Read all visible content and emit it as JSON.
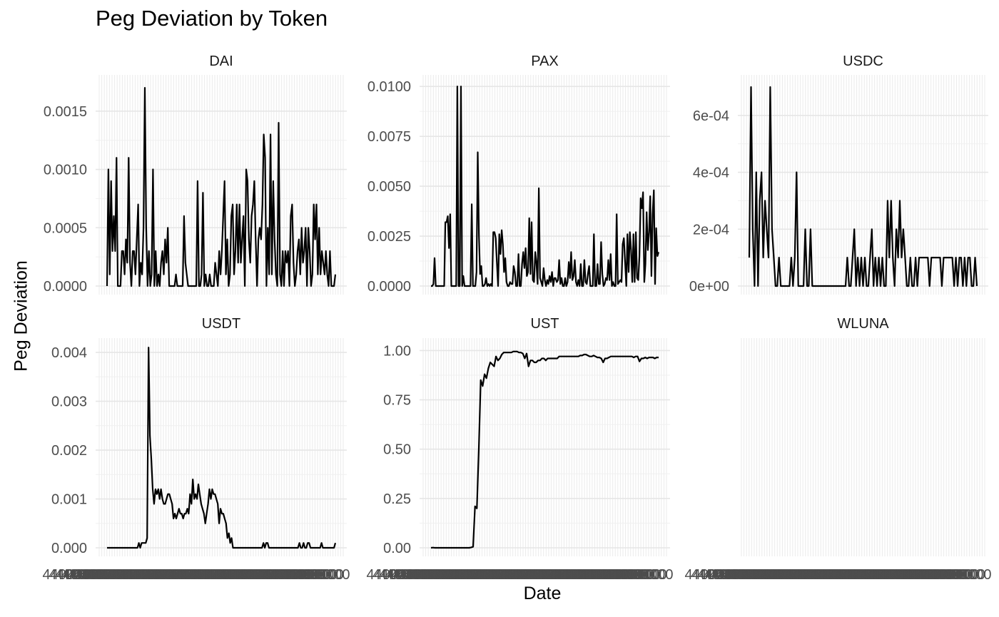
{
  "chart_data": {
    "type": "line",
    "title": "Peg Deviation by Token",
    "xlabel": "Date",
    "ylabel": "Peg Deviation",
    "x_tick_label": "44000000",
    "grid": true,
    "facets": [
      {
        "name": "DAI",
        "ylim": [
          0,
          0.00178
        ],
        "yticks": [
          0,
          0.0005,
          0.001,
          0.0015
        ],
        "ytick_labels": [
          "0.0000",
          "0.0005",
          "0.0010",
          "0.0015"
        ],
        "values": [
          0,
          0.001,
          0.0001,
          0.0009,
          0.0003,
          0.0006,
          0.0003,
          0.0011,
          0,
          0,
          0,
          0.0003,
          0.0003,
          0.0001,
          0.0004,
          0.0002,
          0.0011,
          0.0002,
          0,
          0.0003,
          0.0003,
          0.0001,
          0.0004,
          0.0007,
          0,
          0.0002,
          0.0001,
          0.0005,
          0.0017,
          0.0005,
          0,
          0.0003,
          0,
          0.0001,
          0.001,
          0,
          0.0003,
          0,
          0.0001,
          0,
          0.0002,
          0.0003,
          0.0001,
          0.0004,
          0.0002,
          0.0005,
          0,
          0,
          0,
          0,
          0,
          0.0001,
          0,
          0,
          0,
          0,
          0,
          0.0006,
          0.0002,
          0.0001,
          0,
          0,
          0,
          0,
          0,
          0,
          0,
          0.0009,
          0,
          0,
          0.0001,
          0.0008,
          0,
          0.0001,
          0,
          0,
          0.0001,
          0,
          0,
          0,
          0.0002,
          0.0001,
          0,
          0.0003,
          0.0001,
          0.0003,
          0.0006,
          0.0009,
          0.0001,
          0.0004,
          0,
          0.0001,
          0.0006,
          0.0007,
          0.0001,
          0.0003,
          0.0007,
          0.0002,
          0.0007,
          0.0002,
          0.0004,
          0.0006,
          0,
          0.001,
          0.0009,
          0.0004,
          0.0002,
          0.0006,
          0.0007,
          0.0009,
          0.0004,
          0,
          0.0004,
          0.0005,
          0.0004,
          0.0007,
          0.0013,
          0.0011,
          0,
          0.0005,
          0.0001,
          0.0013,
          0.0001,
          0.0009,
          0.0004,
          0.0001,
          0,
          0.0014,
          0.0001,
          0,
          0.0003,
          0,
          0.0003,
          0.0002,
          0.0003,
          0,
          0.0006,
          0.0007,
          0.0002,
          0,
          0.0001,
          0.0003,
          0.0004,
          0.0001,
          0.0005,
          0.0002,
          0.0003,
          0.0005,
          0,
          0.0005,
          0.0003,
          0,
          0.0001,
          0.0007,
          0.0004,
          0.0007,
          0.0001,
          0.0005,
          0.0001,
          0.0003,
          0.0002,
          0.0001,
          0.0003,
          0.0001,
          0,
          0.0003,
          0,
          0,
          0,
          0.0001
        ]
      },
      {
        "name": "PAX",
        "ylim": [
          0,
          0.0104
        ],
        "yticks": [
          0,
          0.0025,
          0.005,
          0.0075,
          0.01
        ],
        "ytick_labels": [
          "0.0000",
          "0.0025",
          "0.0050",
          "0.0075",
          "0.0100"
        ],
        "values": [
          0,
          0,
          0.0001,
          0.0014,
          0,
          0,
          0,
          0,
          0,
          0,
          0,
          0,
          0.0032,
          0.0032,
          0.0035,
          0.0019,
          0.0036,
          0,
          0,
          0,
          0,
          0,
          0.01,
          0,
          0,
          0.01,
          0,
          0.0005,
          0,
          0,
          0,
          0,
          0,
          0,
          0.0041,
          0,
          0,
          0,
          0.0007,
          0.0067,
          0.0025,
          0.0006,
          0.001,
          0,
          0,
          0.0001,
          0.0004,
          0,
          0.0001,
          0,
          0.0001,
          0,
          0.0027,
          0.0027,
          0.0024,
          0.0012,
          0,
          0.0026,
          0.0016,
          0.0028,
          0.0021,
          0.0007,
          0.0014,
          0.0002,
          0,
          0,
          0.0002,
          0.0001,
          0.0001,
          0.001,
          0.0007,
          0,
          0,
          0.0016,
          0,
          0,
          0.0011,
          0.0017,
          0.0009,
          0.0019,
          0.0005,
          0.0007,
          0.0034,
          0.0006,
          0.0032,
          0.0003,
          0.0002,
          0.0017,
          0.0012,
          0.0001,
          0.0049,
          0.0004,
          0.0002,
          0,
          0.0009,
          0.0003,
          0,
          0.0003,
          0.0001,
          0.0005,
          0.0002,
          0.0007,
          0,
          0.0004,
          0.0004,
          0.0002,
          0.0003,
          0.0013,
          0.0001,
          0.0004,
          0,
          0,
          0.0004,
          0,
          0.0002,
          0.0012,
          0.0004,
          0.0017,
          0.0003,
          0.0005,
          0.0013,
          0.0002,
          0,
          0.0003,
          0,
          0.0011,
          0,
          0,
          0.0013,
          0.0002,
          0.0001,
          0.0006,
          0.001,
          0,
          0,
          0,
          0.0026,
          0,
          0,
          0.0011,
          0.0001,
          0.0001,
          0.0022,
          0.0006,
          0,
          0.0001,
          0.0004,
          0.0003,
          0.0013,
          0.0003,
          0.0016,
          0,
          0.0002,
          0,
          0,
          0.0036,
          0.0001,
          0.0002,
          0.0003,
          0.0002,
          0.0021,
          0.0024,
          0.0012,
          0,
          0.0026,
          0.0007,
          0.0027,
          0.0018,
          0.0002,
          0.0026,
          0.0002,
          0.0027,
          0.0004,
          0.0003,
          0.0015,
          0.0044,
          0.0039,
          0.0047,
          0.0002,
          0.0011,
          0.0037,
          0.0018,
          0.0027,
          0.0045,
          0.0005,
          0.0036,
          0.0048,
          0.0001,
          0.0029,
          0.0015,
          0.0017
        ]
      },
      {
        "name": "USDC",
        "ylim": [
          0,
          0.00073
        ],
        "yticks": [
          0,
          0.0002,
          0.0004,
          0.0006
        ],
        "ytick_labels": [
          "0e+00",
          "2e-04",
          "4e-04",
          "6e-04"
        ],
        "values": [
          0.0001,
          0.0007,
          0.0002,
          0,
          0.0004,
          0,
          0.0003,
          0.0004,
          0.0001,
          0.0003,
          0.0002,
          0.0001,
          0.0007,
          0.0002,
          0.0001,
          0,
          0,
          0.0001,
          0,
          0,
          0,
          0,
          0,
          0,
          0.0001,
          0,
          0.0001,
          0.0004,
          0,
          0,
          0,
          0,
          0.0002,
          0,
          0,
          0.0002,
          0,
          0,
          0,
          0,
          0,
          0,
          0,
          0,
          0,
          0,
          0,
          0,
          0,
          0,
          0,
          0,
          0,
          0,
          0,
          0,
          0.0001,
          0,
          0,
          0.0001,
          0.0002,
          0,
          0.0001,
          0,
          0.0001,
          0,
          0.0001,
          0,
          0,
          0.0001,
          0.0002,
          0,
          0.0001,
          0,
          0.0001,
          0,
          0.0001,
          0,
          0,
          0.0003,
          0.0001,
          0.0003,
          0.0001,
          0,
          0.0002,
          0.0001,
          0.0003,
          0.0001,
          0.0002,
          0.0001,
          0,
          0,
          0.0001,
          0,
          0,
          0.0001,
          0,
          0.0001,
          0.0001,
          0.0001,
          0.0001,
          0.0001,
          0.0001,
          0,
          0.0001,
          0.0001,
          0.0001,
          0.0001,
          0.0001,
          0.0001,
          0,
          0.0001,
          0.0001,
          0.0001,
          0.0001,
          0.0001,
          0.0001,
          0,
          0.0001,
          0,
          0.0001,
          0.0001,
          0,
          0.0001,
          0,
          0.0001,
          0.0001,
          0,
          0,
          0.0001,
          0
        ]
      },
      {
        "name": "USDT",
        "ylim": [
          0,
          0.00422
        ],
        "yticks": [
          0,
          0.001,
          0.002,
          0.003,
          0.004
        ],
        "ytick_labels": [
          "0.000",
          "0.001",
          "0.002",
          "0.003",
          "0.004"
        ],
        "values": [
          0,
          0,
          0,
          0,
          0,
          0,
          0,
          0,
          0,
          0,
          0,
          0,
          0,
          0,
          0,
          0,
          0,
          0,
          0,
          0,
          0,
          0,
          0,
          0.0001,
          0,
          0.0001,
          0.0001,
          0.0001,
          0.0001,
          0.0002,
          0.0041,
          0.0023,
          0.0018,
          0.0012,
          0.0009,
          0.0012,
          0.0011,
          0.0012,
          0.001,
          0.0012,
          0.001,
          0.0009,
          0.0009,
          0.001,
          0.0011,
          0.0011,
          0.001,
          0.0009,
          0.0006,
          0.0007,
          0.0006,
          0.0007,
          0.0008,
          0.0007,
          0.0007,
          0.0006,
          0.0007,
          0.0007,
          0.0008,
          0.0007,
          0.0011,
          0.0009,
          0.0014,
          0.001,
          0.0011,
          0.001,
          0.0013,
          0.0011,
          0.0009,
          0.0008,
          0.0007,
          0.0005,
          0.0007,
          0.0009,
          0.0012,
          0.001,
          0.0012,
          0.0011,
          0.0011,
          0.001,
          0.0009,
          0.0005,
          0.0008,
          0.0007,
          0.0007,
          0.0006,
          0.0005,
          0.0002,
          0.0003,
          0.0001,
          0.0002,
          0,
          0,
          0,
          0,
          0,
          0,
          0,
          0,
          0,
          0,
          0,
          0,
          0,
          0,
          0,
          0,
          0,
          0,
          0,
          0,
          0,
          0,
          0.0001,
          0,
          0.0001,
          0.0001,
          0,
          0,
          0,
          0,
          0,
          0,
          0,
          0,
          0,
          0,
          0,
          0,
          0,
          0,
          0,
          0,
          0,
          0,
          0,
          0,
          0,
          0,
          0.0001,
          0,
          0,
          0.0001,
          0,
          0,
          0.0001,
          0.0001,
          0,
          0,
          0,
          0,
          0,
          0,
          0,
          0,
          0.0001,
          0,
          0,
          0,
          0,
          0,
          0,
          0,
          0,
          0,
          0.0001
        ]
      },
      {
        "name": "UST",
        "ylim": [
          0,
          1.045
        ],
        "yticks": [
          0,
          0.25,
          0.5,
          0.75,
          1
        ],
        "ytick_labels": [
          "0.00",
          "0.25",
          "0.50",
          "0.75",
          "1.00"
        ],
        "values": [
          0,
          0.001,
          0,
          0,
          0,
          0,
          0,
          0,
          0,
          0,
          0,
          0,
          0,
          0,
          0,
          0,
          0,
          0,
          0,
          0,
          0,
          0.002,
          0.005,
          0.21,
          0.2,
          0.5,
          0.85,
          0.82,
          0.88,
          0.86,
          0.91,
          0.94,
          0.93,
          0.92,
          0.97,
          0.95,
          0.96,
          0.98,
          0.99,
          0.99,
          0.99,
          0.99,
          0.99,
          0.995,
          0.995,
          0.995,
          0.99,
          0.99,
          0.985,
          0.96,
          0.985,
          0.92,
          0.95,
          0.95,
          0.94,
          0.94,
          0.95,
          0.95,
          0.96,
          0.96,
          0.95,
          0.96,
          0.96,
          0.96,
          0.96,
          0.96,
          0.96,
          0.97,
          0.97,
          0.97,
          0.97,
          0.97,
          0.97,
          0.97,
          0.97,
          0.97,
          0.97,
          0.97,
          0.975,
          0.975,
          0.98,
          0.98,
          0.975,
          0.97,
          0.97,
          0.975,
          0.97,
          0.965,
          0.965,
          0.96,
          0.94,
          0.96,
          0.96,
          0.965,
          0.97,
          0.97,
          0.97,
          0.97,
          0.97,
          0.97,
          0.97,
          0.97,
          0.97,
          0.97,
          0.97,
          0.97,
          0.965,
          0.97,
          0.97,
          0.945,
          0.96,
          0.96,
          0.965,
          0.96,
          0.965,
          0.965,
          0.965,
          0.96,
          0.965,
          0.965
        ]
      },
      {
        "name": "WLUNA",
        "ylim": [
          0,
          1
        ],
        "yticks": [],
        "ytick_labels": [],
        "values": []
      }
    ]
  }
}
